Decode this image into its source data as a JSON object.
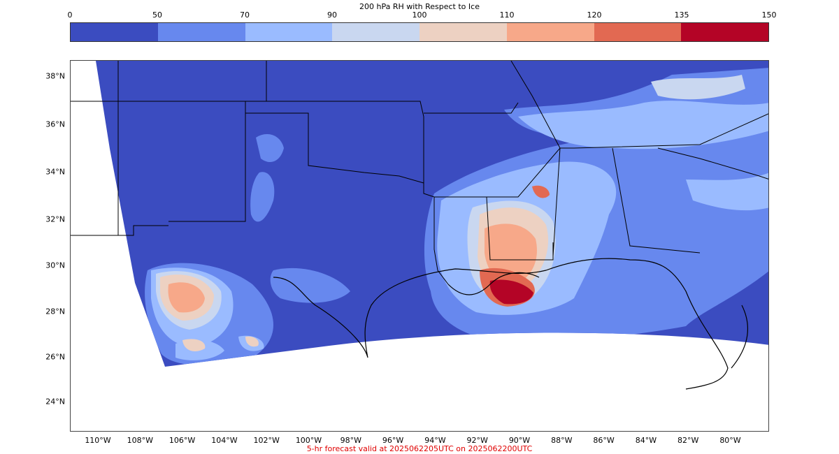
{
  "colorbar": {
    "title": "200 hPa RH with Respect to Ice",
    "ticks": [
      "0",
      "50",
      "70",
      "90",
      "100",
      "110",
      "120",
      "135",
      "150"
    ],
    "colors": [
      "#3b4cc0",
      "#6788ee",
      "#9abbff",
      "#c9d7f0",
      "#edd1c2",
      "#f7a889",
      "#e26952",
      "#b40426"
    ]
  },
  "map": {
    "lat_labels": [
      "38°N",
      "36°N",
      "34°N",
      "32°N",
      "30°N",
      "28°N",
      "26°N",
      "24°N"
    ],
    "lon_labels": [
      "110°W",
      "108°W",
      "106°W",
      "104°W",
      "102°W",
      "100°W",
      "98°W",
      "96°W",
      "94°W",
      "92°W",
      "90°W",
      "88°W",
      "86°W",
      "84°W",
      "82°W",
      "80°W"
    ],
    "background_color": "#3b4cc0",
    "border_color": "#000000"
  },
  "caption": {
    "text": "5-hr forecast valid at 2025062205UTC on 2025062200UTC",
    "color": "#e00000"
  }
}
